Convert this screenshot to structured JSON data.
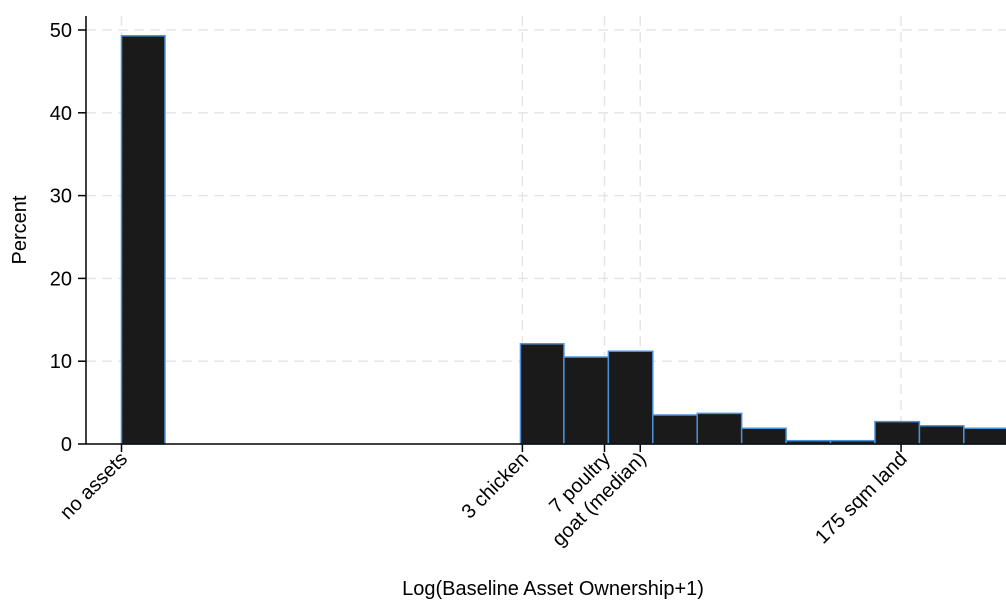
{
  "chart_data": {
    "type": "bar",
    "subtype": "histogram",
    "xlabel": "Log(Baseline Asset Ownership+1)",
    "ylabel": "Percent",
    "ylim": [
      0,
      52
    ],
    "xlim": [
      0,
      10.4
    ],
    "yticks": [
      0,
      10,
      20,
      30,
      40,
      50
    ],
    "grid": true,
    "colors": {
      "bar_fill": "#1a1a1a",
      "bar_edge": "#4a90d9",
      "grid": "#e6e6e6",
      "axis": "#000000"
    },
    "bars": [
      {
        "x0": 0.0,
        "x1": 0.45,
        "value": 49.3
      },
      {
        "x0": 4.13,
        "x1": 4.58,
        "value": 12.1
      },
      {
        "x0": 4.58,
        "x1": 5.04,
        "value": 10.5
      },
      {
        "x0": 5.04,
        "x1": 5.5,
        "value": 11.2
      },
      {
        "x0": 5.5,
        "x1": 5.96,
        "value": 3.5
      },
      {
        "x0": 5.96,
        "x1": 6.42,
        "value": 3.7
      },
      {
        "x0": 6.42,
        "x1": 6.88,
        "value": 1.9
      },
      {
        "x0": 6.88,
        "x1": 7.34,
        "value": 0.4
      },
      {
        "x0": 7.34,
        "x1": 7.8,
        "value": 0.4
      },
      {
        "x0": 7.8,
        "x1": 8.26,
        "value": 2.7
      },
      {
        "x0": 8.26,
        "x1": 8.72,
        "value": 2.2
      },
      {
        "x0": 8.72,
        "x1": 9.18,
        "value": 1.9
      }
    ],
    "xticks": [
      {
        "label": "no assets",
        "value": 0.0
      },
      {
        "label": "3 chicken",
        "value": 4.15
      },
      {
        "label": "7 poultry",
        "value": 5.0
      },
      {
        "label": "goat (median)",
        "value": 5.37
      },
      {
        "label": "175 sqm land",
        "value": 8.07
      }
    ]
  }
}
